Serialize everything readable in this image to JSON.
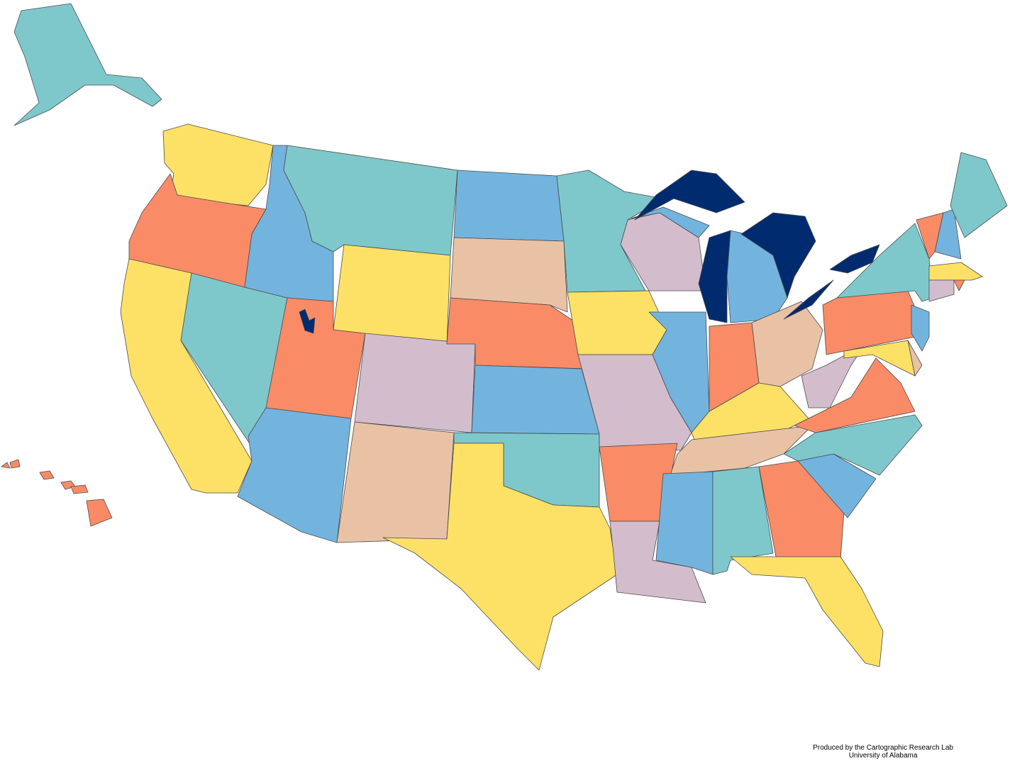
{
  "credit": {
    "line1": "Produced by the Cartographic Research Lab",
    "line2": "University of Alabama"
  },
  "palette": {
    "teal": "#7ec8cc",
    "yellow": "#fde166",
    "orange": "#f98b67",
    "blue": "#73b4de",
    "lavender": "#d3bdcd",
    "tan": "#e9c2a6",
    "water": "#002b6f"
  },
  "regions": [
    {
      "id": "alaska",
      "color": "teal"
    },
    {
      "id": "hawaii",
      "color": "orange"
    },
    {
      "id": "washington",
      "color": "yellow"
    },
    {
      "id": "oregon",
      "color": "orange"
    },
    {
      "id": "california",
      "color": "yellow"
    },
    {
      "id": "nevada",
      "color": "teal"
    },
    {
      "id": "idaho",
      "color": "blue"
    },
    {
      "id": "montana",
      "color": "teal"
    },
    {
      "id": "wyoming",
      "color": "yellow"
    },
    {
      "id": "utah",
      "color": "orange"
    },
    {
      "id": "arizona",
      "color": "blue"
    },
    {
      "id": "colorado",
      "color": "lavender"
    },
    {
      "id": "new-mexico",
      "color": "tan"
    },
    {
      "id": "north-dakota",
      "color": "blue"
    },
    {
      "id": "south-dakota",
      "color": "tan"
    },
    {
      "id": "nebraska",
      "color": "orange"
    },
    {
      "id": "kansas",
      "color": "blue"
    },
    {
      "id": "oklahoma",
      "color": "teal"
    },
    {
      "id": "texas",
      "color": "yellow"
    },
    {
      "id": "minnesota",
      "color": "teal"
    },
    {
      "id": "iowa",
      "color": "yellow"
    },
    {
      "id": "missouri",
      "color": "lavender"
    },
    {
      "id": "arkansas",
      "color": "orange"
    },
    {
      "id": "louisiana",
      "color": "lavender"
    },
    {
      "id": "wisconsin",
      "color": "lavender"
    },
    {
      "id": "illinois",
      "color": "blue"
    },
    {
      "id": "michigan-upper",
      "color": "blue"
    },
    {
      "id": "michigan-lower",
      "color": "blue"
    },
    {
      "id": "indiana",
      "color": "orange"
    },
    {
      "id": "ohio",
      "color": "tan"
    },
    {
      "id": "kentucky",
      "color": "yellow"
    },
    {
      "id": "tennessee",
      "color": "tan"
    },
    {
      "id": "mississippi",
      "color": "blue"
    },
    {
      "id": "alabama",
      "color": "teal"
    },
    {
      "id": "georgia",
      "color": "orange"
    },
    {
      "id": "florida",
      "color": "yellow"
    },
    {
      "id": "south-carolina",
      "color": "blue"
    },
    {
      "id": "north-carolina",
      "color": "teal"
    },
    {
      "id": "virginia",
      "color": "orange"
    },
    {
      "id": "west-virginia",
      "color": "lavender"
    },
    {
      "id": "pennsylvania",
      "color": "orange"
    },
    {
      "id": "new-york",
      "color": "teal"
    },
    {
      "id": "maryland",
      "color": "yellow"
    },
    {
      "id": "delaware",
      "color": "tan"
    },
    {
      "id": "new-jersey",
      "color": "blue"
    },
    {
      "id": "vermont",
      "color": "orange"
    },
    {
      "id": "new-hampshire",
      "color": "blue"
    },
    {
      "id": "maine",
      "color": "teal"
    },
    {
      "id": "massachusetts",
      "color": "yellow"
    },
    {
      "id": "connecticut",
      "color": "lavender"
    },
    {
      "id": "rhode-island",
      "color": "orange"
    },
    {
      "id": "lake-superior",
      "color": "water"
    },
    {
      "id": "lake-michigan",
      "color": "water"
    },
    {
      "id": "lake-huron",
      "color": "water"
    },
    {
      "id": "lake-erie",
      "color": "water"
    },
    {
      "id": "lake-ontario",
      "color": "water"
    },
    {
      "id": "great-salt-lake",
      "color": "water"
    }
  ]
}
